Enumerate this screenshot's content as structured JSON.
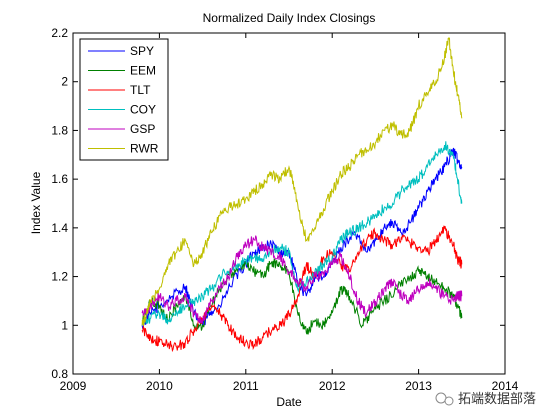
{
  "chart_data": {
    "type": "line",
    "title": "Normalized Daily Index Closings",
    "xlabel": "Date",
    "ylabel": "Index Value",
    "xlim": [
      2009,
      2014
    ],
    "ylim": [
      0.8,
      2.2
    ],
    "xticks": [
      "2009",
      "2010",
      "2011",
      "2012",
      "2013",
      "2014"
    ],
    "yticks": [
      "0.8",
      "1",
      "1.2",
      "1.4",
      "1.6",
      "1.8",
      "2",
      "2.2"
    ],
    "grid": false,
    "legend_position": "top-left",
    "series": [
      {
        "name": "SPY",
        "color": "#0000ff",
        "points": [
          [
            2009.8,
            1.0
          ],
          [
            2009.9,
            1.05
          ],
          [
            2010.0,
            1.08
          ],
          [
            2010.15,
            1.12
          ],
          [
            2010.3,
            1.16
          ],
          [
            2010.4,
            1.05
          ],
          [
            2010.5,
            1.0
          ],
          [
            2010.6,
            1.06
          ],
          [
            2010.7,
            1.08
          ],
          [
            2010.85,
            1.18
          ],
          [
            2011.0,
            1.25
          ],
          [
            2011.1,
            1.3
          ],
          [
            2011.2,
            1.32
          ],
          [
            2011.3,
            1.33
          ],
          [
            2011.4,
            1.3
          ],
          [
            2011.5,
            1.3
          ],
          [
            2011.6,
            1.18
          ],
          [
            2011.7,
            1.12
          ],
          [
            2011.8,
            1.2
          ],
          [
            2011.9,
            1.2
          ],
          [
            2012.0,
            1.25
          ],
          [
            2012.1,
            1.32
          ],
          [
            2012.25,
            1.38
          ],
          [
            2012.4,
            1.3
          ],
          [
            2012.5,
            1.35
          ],
          [
            2012.6,
            1.4
          ],
          [
            2012.7,
            1.42
          ],
          [
            2012.8,
            1.38
          ],
          [
            2012.9,
            1.42
          ],
          [
            2013.0,
            1.48
          ],
          [
            2013.1,
            1.55
          ],
          [
            2013.2,
            1.6
          ],
          [
            2013.3,
            1.65
          ],
          [
            2013.4,
            1.72
          ],
          [
            2013.45,
            1.68
          ],
          [
            2013.5,
            1.65
          ]
        ]
      },
      {
        "name": "EEM",
        "color": "#008000",
        "points": [
          [
            2009.8,
            1.02
          ],
          [
            2009.9,
            1.1
          ],
          [
            2010.0,
            1.08
          ],
          [
            2010.1,
            1.02
          ],
          [
            2010.2,
            1.08
          ],
          [
            2010.3,
            1.12
          ],
          [
            2010.4,
            1.0
          ],
          [
            2010.5,
            1.0
          ],
          [
            2010.6,
            1.08
          ],
          [
            2010.7,
            1.15
          ],
          [
            2010.85,
            1.22
          ],
          [
            2011.0,
            1.25
          ],
          [
            2011.1,
            1.22
          ],
          [
            2011.2,
            1.2
          ],
          [
            2011.3,
            1.26
          ],
          [
            2011.4,
            1.24
          ],
          [
            2011.5,
            1.22
          ],
          [
            2011.6,
            1.05
          ],
          [
            2011.7,
            0.97
          ],
          [
            2011.8,
            1.02
          ],
          [
            2011.9,
            1.0
          ],
          [
            2012.0,
            1.05
          ],
          [
            2012.1,
            1.15
          ],
          [
            2012.2,
            1.12
          ],
          [
            2012.35,
            1.0
          ],
          [
            2012.45,
            1.05
          ],
          [
            2012.6,
            1.1
          ],
          [
            2012.75,
            1.15
          ],
          [
            2012.9,
            1.2
          ],
          [
            2013.0,
            1.22
          ],
          [
            2013.1,
            1.2
          ],
          [
            2013.2,
            1.18
          ],
          [
            2013.3,
            1.15
          ],
          [
            2013.4,
            1.12
          ],
          [
            2013.45,
            1.08
          ],
          [
            2013.5,
            1.03
          ]
        ]
      },
      {
        "name": "TLT",
        "color": "#ff0000",
        "points": [
          [
            2009.8,
            0.98
          ],
          [
            2009.9,
            0.95
          ],
          [
            2010.0,
            0.93
          ],
          [
            2010.1,
            0.92
          ],
          [
            2010.2,
            0.91
          ],
          [
            2010.3,
            0.93
          ],
          [
            2010.4,
            0.98
          ],
          [
            2010.5,
            1.03
          ],
          [
            2010.6,
            1.07
          ],
          [
            2010.7,
            1.05
          ],
          [
            2010.8,
            1.0
          ],
          [
            2010.9,
            0.95
          ],
          [
            2011.0,
            0.93
          ],
          [
            2011.1,
            0.92
          ],
          [
            2011.2,
            0.95
          ],
          [
            2011.3,
            0.98
          ],
          [
            2011.4,
            1.0
          ],
          [
            2011.5,
            1.04
          ],
          [
            2011.6,
            1.12
          ],
          [
            2011.7,
            1.25
          ],
          [
            2011.8,
            1.2
          ],
          [
            2011.9,
            1.28
          ],
          [
            2012.0,
            1.3
          ],
          [
            2012.1,
            1.25
          ],
          [
            2012.2,
            1.22
          ],
          [
            2012.3,
            1.3
          ],
          [
            2012.4,
            1.35
          ],
          [
            2012.5,
            1.38
          ],
          [
            2012.6,
            1.35
          ],
          [
            2012.7,
            1.33
          ],
          [
            2012.8,
            1.36
          ],
          [
            2012.9,
            1.34
          ],
          [
            2013.0,
            1.32
          ],
          [
            2013.1,
            1.3
          ],
          [
            2013.2,
            1.35
          ],
          [
            2013.3,
            1.4
          ],
          [
            2013.4,
            1.33
          ],
          [
            2013.45,
            1.27
          ],
          [
            2013.5,
            1.25
          ]
        ]
      },
      {
        "name": "COY",
        "color": "#00bfbf",
        "points": [
          [
            2009.8,
            1.0
          ],
          [
            2009.9,
            1.03
          ],
          [
            2010.0,
            1.05
          ],
          [
            2010.1,
            1.02
          ],
          [
            2010.2,
            1.05
          ],
          [
            2010.3,
            1.08
          ],
          [
            2010.4,
            1.1
          ],
          [
            2010.5,
            1.12
          ],
          [
            2010.6,
            1.15
          ],
          [
            2010.7,
            1.2
          ],
          [
            2010.8,
            1.22
          ],
          [
            2010.9,
            1.25
          ],
          [
            2011.0,
            1.27
          ],
          [
            2011.1,
            1.28
          ],
          [
            2011.2,
            1.27
          ],
          [
            2011.3,
            1.3
          ],
          [
            2011.4,
            1.32
          ],
          [
            2011.5,
            1.3
          ],
          [
            2011.6,
            1.15
          ],
          [
            2011.7,
            1.18
          ],
          [
            2011.8,
            1.22
          ],
          [
            2011.9,
            1.25
          ],
          [
            2012.0,
            1.28
          ],
          [
            2012.1,
            1.35
          ],
          [
            2012.2,
            1.38
          ],
          [
            2012.3,
            1.4
          ],
          [
            2012.4,
            1.42
          ],
          [
            2012.5,
            1.45
          ],
          [
            2012.6,
            1.48
          ],
          [
            2012.7,
            1.5
          ],
          [
            2012.8,
            1.55
          ],
          [
            2012.9,
            1.58
          ],
          [
            2013.0,
            1.6
          ],
          [
            2013.1,
            1.65
          ],
          [
            2013.2,
            1.7
          ],
          [
            2013.3,
            1.74
          ],
          [
            2013.4,
            1.7
          ],
          [
            2013.45,
            1.6
          ],
          [
            2013.5,
            1.5
          ]
        ]
      },
      {
        "name": "GSP",
        "color": "#bf00bf",
        "points": [
          [
            2009.8,
            1.05
          ],
          [
            2009.9,
            1.08
          ],
          [
            2010.0,
            1.12
          ],
          [
            2010.1,
            1.08
          ],
          [
            2010.2,
            1.1
          ],
          [
            2010.3,
            1.12
          ],
          [
            2010.4,
            1.05
          ],
          [
            2010.5,
            1.02
          ],
          [
            2010.6,
            1.1
          ],
          [
            2010.7,
            1.15
          ],
          [
            2010.8,
            1.2
          ],
          [
            2010.9,
            1.28
          ],
          [
            2011.0,
            1.33
          ],
          [
            2011.1,
            1.35
          ],
          [
            2011.2,
            1.32
          ],
          [
            2011.3,
            1.3
          ],
          [
            2011.4,
            1.28
          ],
          [
            2011.5,
            1.22
          ],
          [
            2011.6,
            1.18
          ],
          [
            2011.7,
            1.15
          ],
          [
            2011.8,
            1.2
          ],
          [
            2011.9,
            1.22
          ],
          [
            2012.0,
            1.25
          ],
          [
            2012.1,
            1.28
          ],
          [
            2012.2,
            1.2
          ],
          [
            2012.3,
            1.1
          ],
          [
            2012.4,
            1.05
          ],
          [
            2012.5,
            1.1
          ],
          [
            2012.6,
            1.15
          ],
          [
            2012.7,
            1.18
          ],
          [
            2012.8,
            1.12
          ],
          [
            2012.9,
            1.1
          ],
          [
            2013.0,
            1.15
          ],
          [
            2013.1,
            1.18
          ],
          [
            2013.2,
            1.15
          ],
          [
            2013.3,
            1.12
          ],
          [
            2013.4,
            1.1
          ],
          [
            2013.45,
            1.12
          ],
          [
            2013.5,
            1.12
          ]
        ]
      },
      {
        "name": "RWR",
        "color": "#bfbf00",
        "points": [
          [
            2009.8,
            1.0
          ],
          [
            2009.85,
            1.05
          ],
          [
            2009.9,
            1.1
          ],
          [
            2010.0,
            1.15
          ],
          [
            2010.1,
            1.25
          ],
          [
            2010.2,
            1.3
          ],
          [
            2010.3,
            1.35
          ],
          [
            2010.4,
            1.25
          ],
          [
            2010.5,
            1.3
          ],
          [
            2010.6,
            1.38
          ],
          [
            2010.7,
            1.45
          ],
          [
            2010.8,
            1.48
          ],
          [
            2010.9,
            1.5
          ],
          [
            2011.0,
            1.52
          ],
          [
            2011.1,
            1.55
          ],
          [
            2011.2,
            1.58
          ],
          [
            2011.3,
            1.62
          ],
          [
            2011.4,
            1.6
          ],
          [
            2011.5,
            1.65
          ],
          [
            2011.6,
            1.5
          ],
          [
            2011.7,
            1.35
          ],
          [
            2011.8,
            1.4
          ],
          [
            2011.9,
            1.48
          ],
          [
            2012.0,
            1.55
          ],
          [
            2012.1,
            1.62
          ],
          [
            2012.2,
            1.65
          ],
          [
            2012.3,
            1.7
          ],
          [
            2012.4,
            1.72
          ],
          [
            2012.5,
            1.75
          ],
          [
            2012.6,
            1.8
          ],
          [
            2012.7,
            1.82
          ],
          [
            2012.8,
            1.78
          ],
          [
            2012.9,
            1.8
          ],
          [
            2013.0,
            1.9
          ],
          [
            2013.1,
            1.95
          ],
          [
            2013.2,
            2.0
          ],
          [
            2013.3,
            2.1
          ],
          [
            2013.35,
            2.18
          ],
          [
            2013.4,
            2.05
          ],
          [
            2013.45,
            1.95
          ],
          [
            2013.5,
            1.85
          ]
        ]
      }
    ]
  },
  "watermark": {
    "text": "拓端数据部落",
    "icon": "wechat-logo-icon"
  }
}
